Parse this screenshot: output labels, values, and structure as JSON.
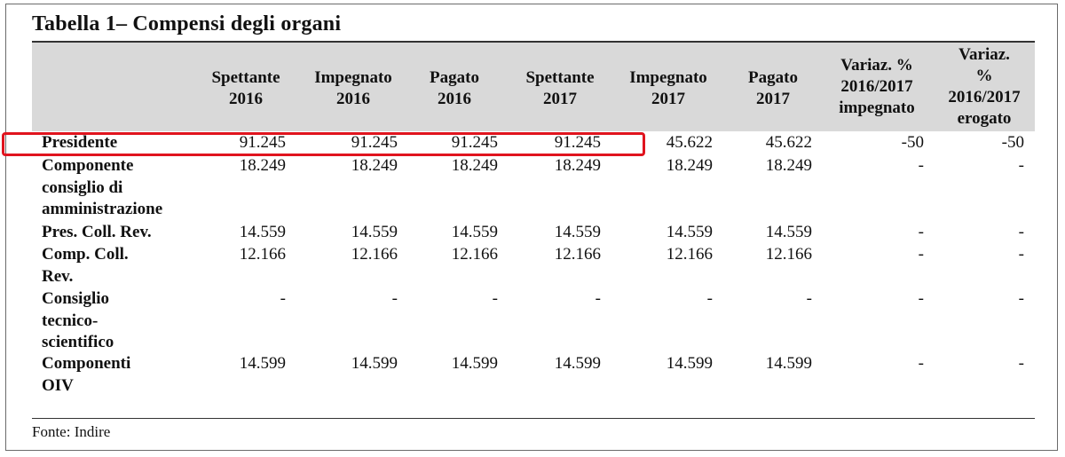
{
  "title": "Tabella 1– Compensi degli organi",
  "source": "Fonte: Indire",
  "table": {
    "columns": [
      "Spettante\n2016",
      "Impegnato\n2016",
      "Pagato\n2016",
      "Spettante\n2017",
      "Impegnato\n2017",
      "Pagato\n2017",
      "Variaz. %\n2016/2017\nimpegnato",
      "Variaz.\n%\n2016/2017\nerogato"
    ],
    "rows": [
      {
        "label": "Presidente",
        "values": [
          "91.245",
          "91.245",
          "91.245",
          "91.245",
          "45.622",
          "45.622",
          "-50",
          "-50"
        ],
        "highlighted": true
      },
      {
        "label": "Componente\nconsiglio di\namministrazione",
        "values": [
          "18.249",
          "18.249",
          "18.249",
          "18.249",
          "18.249",
          "18.249",
          "-",
          "-"
        ]
      },
      {
        "label": "Pres. Coll. Rev.",
        "values": [
          "14.559",
          "14.559",
          "14.559",
          "14.559",
          "14.559",
          "14.559",
          "-",
          "-"
        ]
      },
      {
        "label": "Comp. Coll.\nRev.",
        "values": [
          "12.166",
          "12.166",
          "12.166",
          "12.166",
          "12.166",
          "12.166",
          "-",
          "-"
        ]
      },
      {
        "label": "Consiglio\ntecnico-\nscientifico",
        "values": [
          "-",
          "-",
          "-",
          "-",
          "-",
          "-",
          "-",
          "-"
        ]
      },
      {
        "label": "Componenti\nOIV",
        "values": [
          "14.599",
          "14.599",
          "14.599",
          "14.599",
          "14.599",
          "14.599",
          "-",
          "-"
        ]
      }
    ]
  },
  "colors": {
    "header_background": "#d9d9d9",
    "highlight_border": "#e0141e"
  }
}
